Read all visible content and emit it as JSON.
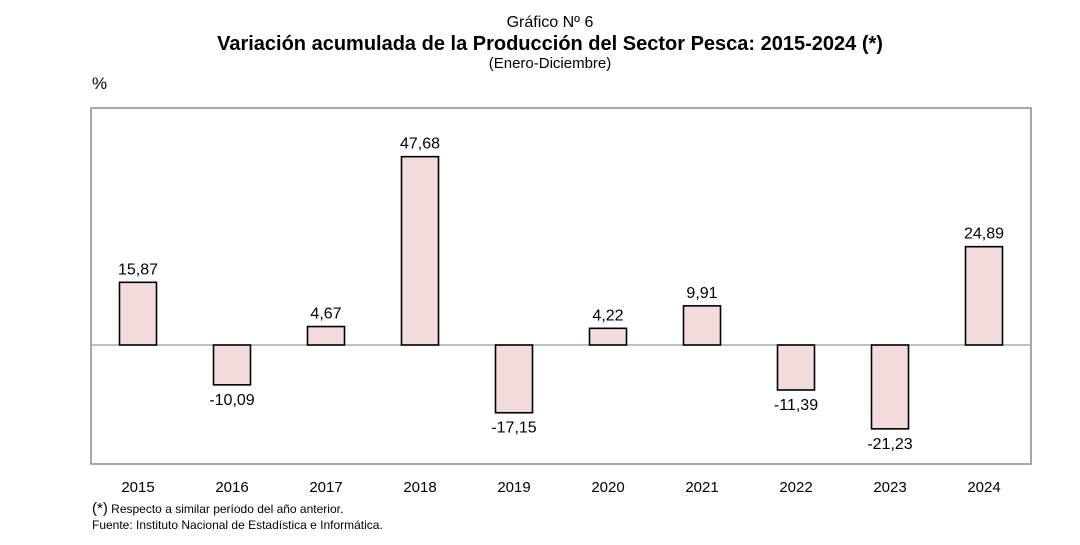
{
  "header": {
    "figure_label": "Gráfico Nº 6",
    "title": "Variación acumulada de la Producción del Sector Pesca: 2015-2024 (*)",
    "period": "(Enero-Diciembre)"
  },
  "unit_label": "%",
  "chart_data": {
    "type": "bar",
    "title": "Variación acumulada de la Producción del Sector Pesca: 2015-2024 (*)",
    "subtitle": "(Enero-Diciembre)",
    "xlabel": "",
    "ylabel": "%",
    "categories": [
      "2015",
      "2016",
      "2017",
      "2018",
      "2019",
      "2020",
      "2021",
      "2022",
      "2023",
      "2024"
    ],
    "values": [
      15.87,
      -10.09,
      4.67,
      47.68,
      -17.15,
      4.22,
      9.91,
      -11.39,
      -21.23,
      24.89
    ],
    "value_labels": [
      "15,87",
      "-10,09",
      "4,67",
      "47,68",
      "-17,15",
      "4,22",
      "9,91",
      "-11,39",
      "-21,23",
      "24,89"
    ],
    "ylim": [
      -30,
      60
    ],
    "grid": false,
    "bar_fill": "#f2dcdc",
    "bar_stroke": "#000000"
  },
  "footnotes": {
    "mark": "(*)",
    "note": " Respecto a similar período del año anterior.",
    "source": "Fuente: Instituto Nacional de Estadística e  Informática."
  }
}
